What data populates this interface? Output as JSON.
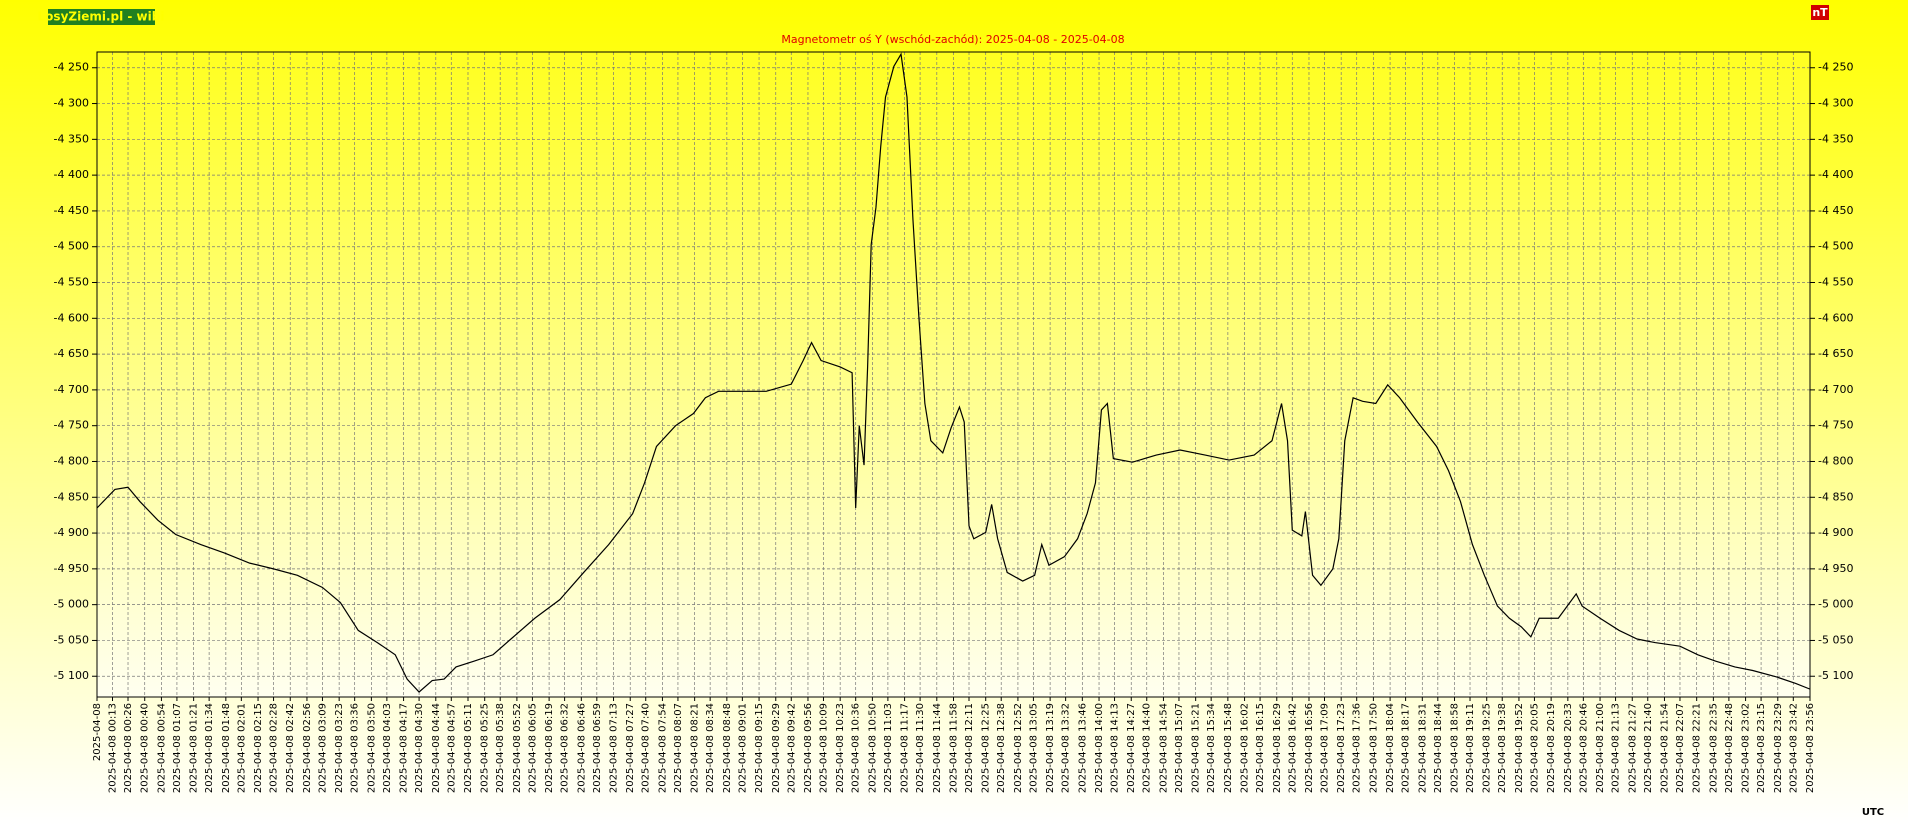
{
  "chart_data": {
    "type": "line",
    "brand": "LosyZiemi.pl - wibi",
    "title": "Magnetometr oś Y (wschód-zachód): 2025-04-08 - 2025-04-08",
    "y_unit": "nT",
    "x_label": "UTC",
    "color": "#000000",
    "grid": true,
    "xlim": [
      0,
      1436
    ],
    "ylim": [
      -5129,
      -4228
    ],
    "yticks": [
      {
        "value": -4250,
        "label": "-4 250"
      },
      {
        "value": -4300,
        "label": "-4 300"
      },
      {
        "value": -4350,
        "label": "-4 350"
      },
      {
        "value": -4400,
        "label": "-4 400"
      },
      {
        "value": -4450,
        "label": "-4 450"
      },
      {
        "value": -4500,
        "label": "-4 500"
      },
      {
        "value": -4550,
        "label": "-4 550"
      },
      {
        "value": -4600,
        "label": "-4 600"
      },
      {
        "value": -4650,
        "label": "-4 650"
      },
      {
        "value": -4700,
        "label": "-4 700"
      },
      {
        "value": -4750,
        "label": "-4 750"
      },
      {
        "value": -4800,
        "label": "-4 800"
      },
      {
        "value": -4850,
        "label": "-4 850"
      },
      {
        "value": -4900,
        "label": "-4 900"
      },
      {
        "value": -4950,
        "label": "-4 950"
      },
      {
        "value": -5000,
        "label": "-5 000"
      },
      {
        "value": -5050,
        "label": "-5 050"
      },
      {
        "value": -5100,
        "label": "-5 100"
      }
    ],
    "xticks": [
      {
        "value": 0,
        "label": "2025-04-08"
      },
      {
        "value": 13,
        "label": "2025-04-08 00:13"
      },
      {
        "value": 26,
        "label": "2025-04-08 00:26"
      },
      {
        "value": 40,
        "label": "2025-04-08 00:40"
      },
      {
        "value": 54,
        "label": "2025-04-08 00:54"
      },
      {
        "value": 67,
        "label": "2025-04-08 01:07"
      },
      {
        "value": 81,
        "label": "2025-04-08 01:21"
      },
      {
        "value": 94,
        "label": "2025-04-08 01:34"
      },
      {
        "value": 108,
        "label": "2025-04-08 01:48"
      },
      {
        "value": 121,
        "label": "2025-04-08 02:01"
      },
      {
        "value": 135,
        "label": "2025-04-08 02:15"
      },
      {
        "value": 148,
        "label": "2025-04-08 02:28"
      },
      {
        "value": 162,
        "label": "2025-04-08 02:42"
      },
      {
        "value": 176,
        "label": "2025-04-08 02:56"
      },
      {
        "value": 189,
        "label": "2025-04-08 03:09"
      },
      {
        "value": 203,
        "label": "2025-04-08 03:23"
      },
      {
        "value": 216,
        "label": "2025-04-08 03:36"
      },
      {
        "value": 230,
        "label": "2025-04-08 03:50"
      },
      {
        "value": 243,
        "label": "2025-04-08 04:03"
      },
      {
        "value": 257,
        "label": "2025-04-08 04:17"
      },
      {
        "value": 270,
        "label": "2025-04-08 04:30"
      },
      {
        "value": 284,
        "label": "2025-04-08 04:44"
      },
      {
        "value": 297,
        "label": "2025-04-08 04:57"
      },
      {
        "value": 311,
        "label": "2025-04-08 05:11"
      },
      {
        "value": 325,
        "label": "2025-04-08 05:25"
      },
      {
        "value": 338,
        "label": "2025-04-08 05:38"
      },
      {
        "value": 352,
        "label": "2025-04-08 05:52"
      },
      {
        "value": 365,
        "label": "2025-04-08 06:05"
      },
      {
        "value": 379,
        "label": "2025-04-08 06:19"
      },
      {
        "value": 392,
        "label": "2025-04-08 06:32"
      },
      {
        "value": 406,
        "label": "2025-04-08 06:46"
      },
      {
        "value": 419,
        "label": "2025-04-08 06:59"
      },
      {
        "value": 433,
        "label": "2025-04-08 07:13"
      },
      {
        "value": 447,
        "label": "2025-04-08 07:27"
      },
      {
        "value": 460,
        "label": "2025-04-08 07:40"
      },
      {
        "value": 474,
        "label": "2025-04-08 07:54"
      },
      {
        "value": 487,
        "label": "2025-04-08 08:07"
      },
      {
        "value": 501,
        "label": "2025-04-08 08:21"
      },
      {
        "value": 514,
        "label": "2025-04-08 08:34"
      },
      {
        "value": 528,
        "label": "2025-04-08 08:48"
      },
      {
        "value": 541,
        "label": "2025-04-08 09:01"
      },
      {
        "value": 555,
        "label": "2025-04-08 09:15"
      },
      {
        "value": 569,
        "label": "2025-04-08 09:29"
      },
      {
        "value": 582,
        "label": "2025-04-08 09:42"
      },
      {
        "value": 596,
        "label": "2025-04-08 09:56"
      },
      {
        "value": 609,
        "label": "2025-04-08 10:09"
      },
      {
        "value": 623,
        "label": "2025-04-08 10:23"
      },
      {
        "value": 636,
        "label": "2025-04-08 10:36"
      },
      {
        "value": 650,
        "label": "2025-04-08 10:50"
      },
      {
        "value": 663,
        "label": "2025-04-08 11:03"
      },
      {
        "value": 677,
        "label": "2025-04-08 11:17"
      },
      {
        "value": 690,
        "label": "2025-04-08 11:30"
      },
      {
        "value": 704,
        "label": "2025-04-08 11:44"
      },
      {
        "value": 718,
        "label": "2025-04-08 11:58"
      },
      {
        "value": 731,
        "label": "2025-04-08 12:11"
      },
      {
        "value": 745,
        "label": "2025-04-08 12:25"
      },
      {
        "value": 758,
        "label": "2025-04-08 12:38"
      },
      {
        "value": 772,
        "label": "2025-04-08 12:52"
      },
      {
        "value": 785,
        "label": "2025-04-08 13:05"
      },
      {
        "value": 799,
        "label": "2025-04-08 13:19"
      },
      {
        "value": 812,
        "label": "2025-04-08 13:32"
      },
      {
        "value": 826,
        "label": "2025-04-08 13:46"
      },
      {
        "value": 840,
        "label": "2025-04-08 14:00"
      },
      {
        "value": 853,
        "label": "2025-04-08 14:13"
      },
      {
        "value": 867,
        "label": "2025-04-08 14:27"
      },
      {
        "value": 880,
        "label": "2025-04-08 14:40"
      },
      {
        "value": 894,
        "label": "2025-04-08 14:54"
      },
      {
        "value": 907,
        "label": "2025-04-08 15:07"
      },
      {
        "value": 921,
        "label": "2025-04-08 15:21"
      },
      {
        "value": 934,
        "label": "2025-04-08 15:34"
      },
      {
        "value": 948,
        "label": "2025-04-08 15:48"
      },
      {
        "value": 962,
        "label": "2025-04-08 16:02"
      },
      {
        "value": 975,
        "label": "2025-04-08 16:15"
      },
      {
        "value": 989,
        "label": "2025-04-08 16:29"
      },
      {
        "value": 1002,
        "label": "2025-04-08 16:42"
      },
      {
        "value": 1016,
        "label": "2025-04-08 16:56"
      },
      {
        "value": 1029,
        "label": "2025-04-08 17:09"
      },
      {
        "value": 1043,
        "label": "2025-04-08 17:23"
      },
      {
        "value": 1056,
        "label": "2025-04-08 17:36"
      },
      {
        "value": 1070,
        "label": "2025-04-08 17:50"
      },
      {
        "value": 1084,
        "label": "2025-04-08 18:04"
      },
      {
        "value": 1097,
        "label": "2025-04-08 18:17"
      },
      {
        "value": 1111,
        "label": "2025-04-08 18:31"
      },
      {
        "value": 1124,
        "label": "2025-04-08 18:44"
      },
      {
        "value": 1138,
        "label": "2025-04-08 18:58"
      },
      {
        "value": 1151,
        "label": "2025-04-08 19:11"
      },
      {
        "value": 1165,
        "label": "2025-04-08 19:25"
      },
      {
        "value": 1178,
        "label": "2025-04-08 19:38"
      },
      {
        "value": 1192,
        "label": "2025-04-08 19:52"
      },
      {
        "value": 1205,
        "label": "2025-04-08 20:05"
      },
      {
        "value": 1219,
        "label": "2025-04-08 20:19"
      },
      {
        "value": 1233,
        "label": "2025-04-08 20:33"
      },
      {
        "value": 1246,
        "label": "2025-04-08 20:46"
      },
      {
        "value": 1260,
        "label": "2025-04-08 21:00"
      },
      {
        "value": 1273,
        "label": "2025-04-08 21:13"
      },
      {
        "value": 1287,
        "label": "2025-04-08 21:27"
      },
      {
        "value": 1300,
        "label": "2025-04-08 21:40"
      },
      {
        "value": 1314,
        "label": "2025-04-08 21:54"
      },
      {
        "value": 1327,
        "label": "2025-04-08 22:07"
      },
      {
        "value": 1341,
        "label": "2025-04-08 22:21"
      },
      {
        "value": 1355,
        "label": "2025-04-08 22:35"
      },
      {
        "value": 1368,
        "label": "2025-04-08 22:48"
      },
      {
        "value": 1382,
        "label": "2025-04-08 23:02"
      },
      {
        "value": 1395,
        "label": "2025-04-08 23:15"
      },
      {
        "value": 1409,
        "label": "2025-04-08 23:29"
      },
      {
        "value": 1422,
        "label": "2025-04-08 23:42"
      },
      {
        "value": 1436,
        "label": "2025-04-08 23:56"
      }
    ],
    "x": [
      0,
      15,
      26,
      36,
      51,
      66,
      87,
      107,
      128,
      148,
      168,
      189,
      204,
      219,
      235,
      250,
      260,
      270,
      281,
      291,
      301,
      316,
      332,
      347,
      367,
      388,
      408,
      429,
      449,
      459,
      469,
      485,
      500,
      510,
      521,
      541,
      561,
      582,
      592,
      599,
      607,
      623,
      633,
      636,
      639,
      643,
      646,
      649,
      653,
      657,
      661,
      668,
      674,
      679,
      684,
      689,
      694,
      699,
      709,
      716,
      723,
      727,
      731,
      735,
      745,
      750,
      755,
      763,
      776,
      786,
      792,
      798,
      811,
      822,
      830,
      837,
      842,
      847,
      852,
      868,
      888,
      908,
      929,
      949,
      970,
      985,
      993,
      998,
      1002,
      1010,
      1013,
      1019,
      1026,
      1036,
      1041,
      1046,
      1053,
      1061,
      1072,
      1082,
      1092,
      1107,
      1123,
      1133,
      1143,
      1153,
      1163,
      1174,
      1184,
      1194,
      1202,
      1209,
      1225,
      1240,
      1245,
      1260,
      1276,
      1291,
      1306,
      1327,
      1342,
      1357,
      1373,
      1388,
      1408,
      1424,
      1436
    ],
    "values": [
      -4865,
      -4839,
      -4836,
      -4856,
      -4882,
      -4902,
      -4916,
      -4928,
      -4942,
      -4950,
      -4959,
      -4976,
      -4997,
      -5036,
      -5053,
      -5070,
      -5104,
      -5122,
      -5106,
      -5104,
      -5087,
      -5079,
      -5070,
      -5048,
      -5019,
      -4993,
      -4955,
      -4916,
      -4873,
      -4830,
      -4779,
      -4750,
      -4733,
      -4711,
      -4702,
      -4702,
      -4702,
      -4692,
      -4659,
      -4634,
      -4659,
      -4668,
      -4676,
      -4865,
      -4750,
      -4805,
      -4668,
      -4497,
      -4445,
      -4360,
      -4291,
      -4248,
      -4231,
      -4291,
      -4462,
      -4599,
      -4719,
      -4771,
      -4788,
      -4753,
      -4724,
      -4745,
      -4890,
      -4908,
      -4899,
      -4860,
      -4908,
      -4955,
      -4967,
      -4959,
      -4916,
      -4945,
      -4933,
      -4908,
      -4873,
      -4830,
      -4728,
      -4719,
      -4796,
      -4801,
      -4791,
      -4784,
      -4791,
      -4798,
      -4791,
      -4771,
      -4719,
      -4771,
      -4896,
      -4904,
      -4870,
      -4959,
      -4973,
      -4950,
      -4908,
      -4771,
      -4711,
      -4716,
      -4719,
      -4693,
      -4711,
      -4745,
      -4779,
      -4813,
      -4856,
      -4916,
      -4959,
      -5002,
      -5019,
      -5031,
      -5045,
      -5019,
      -5019,
      -4985,
      -5002,
      -5019,
      -5036,
      -5048,
      -5053,
      -5058,
      -5070,
      -5079,
      -5087,
      -5092,
      -5101,
      -5110,
      -5118
    ]
  }
}
